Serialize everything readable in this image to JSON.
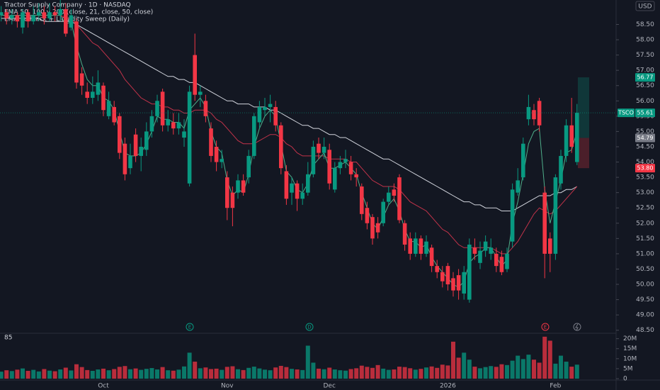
{
  "chart_data": {
    "type": "candlestick",
    "title": "Tractor Supply Company · 1D · NASDAQ",
    "indicators": [
      "EMA 50, 100 y 200 (close, 21, close, 50, close)",
      "EMA Pullback + Liquidity Sweep (Daily)"
    ],
    "currency": "USD",
    "categories": [
      null,
      null,
      null,
      null,
      null,
      null,
      null,
      null,
      null,
      null,
      null,
      null,
      null,
      null,
      null,
      null,
      null,
      null,
      null,
      "Oct",
      null,
      null,
      null,
      null,
      null,
      null,
      null,
      null,
      null,
      null,
      null,
      null,
      null,
      null,
      null,
      null,
      null,
      null,
      null,
      null,
      null,
      null,
      "Nov",
      null,
      null,
      null,
      null,
      null,
      null,
      null,
      null,
      null,
      null,
      null,
      null,
      null,
      null,
      null,
      null,
      null,
      null,
      "Dec",
      null,
      null,
      null,
      null,
      null,
      null,
      null,
      null,
      null,
      null,
      null,
      null,
      null,
      null,
      null,
      null,
      null,
      null,
      null,
      null,
      null,
      "2026",
      null,
      null,
      null,
      null,
      null,
      null,
      null,
      null,
      null,
      null,
      null,
      null,
      null,
      null,
      null,
      null,
      null,
      null,
      null,
      "Feb",
      null,
      null,
      null,
      null
    ],
    "open": [
      58.8,
      58.9,
      58.7,
      58.8,
      58.4,
      58.9,
      58.6,
      58.8,
      58.9,
      58.7,
      58.9,
      58.8,
      59.0,
      58.4,
      58.6,
      56.9,
      56.3,
      56.1,
      56.2,
      56.5,
      55.5,
      55.8,
      55.5,
      54.6,
      53.8,
      54.9,
      54.2,
      54.4,
      55.0,
      55.5,
      56.3,
      55.2,
      55.3,
      55.1,
      54.8,
      53.3,
      57.5,
      56.2,
      56.0,
      55.1,
      54.5,
      54.0,
      53.5,
      53.0,
      53.0,
      53.4,
      53.5,
      54.2,
      55.3,
      55.7,
      55.8,
      55.8,
      55.2,
      53.7,
      53.0,
      53.3,
      52.8,
      53.0,
      53.6,
      54.6,
      54.3,
      54.4,
      53.1,
      53.8,
      54.0,
      54.0,
      53.6,
      53.2,
      52.5,
      52.2,
      52.0,
      52.0,
      52.7,
      53.1,
      53.5,
      52.0,
      51.5,
      51.0,
      51.5,
      51.0,
      51.2,
      50.6,
      50.4,
      50.6,
      50.2,
      50.3,
      49.7,
      49.5,
      51.2,
      50.7,
      51.1,
      51.0,
      51.0,
      50.9,
      50.5,
      51.4,
      53.0,
      53.5,
      55.4,
      55.7,
      56.0,
      53.0,
      51.5,
      51.0,
      53.3,
      54.2,
      55.2,
      54.0
    ],
    "high": [
      59.1,
      59.0,
      59.0,
      58.9,
      59.0,
      59.0,
      59.1,
      59.2,
      59.1,
      59.2,
      59.1,
      59.3,
      59.2,
      59.0,
      58.7,
      57.1,
      56.6,
      56.8,
      57.0,
      56.6,
      56.3,
      56.0,
      55.6,
      54.8,
      54.6,
      55.1,
      54.8,
      55.3,
      55.7,
      56.2,
      56.4,
      55.7,
      55.6,
      55.6,
      55.4,
      56.5,
      58.2,
      56.5,
      56.2,
      55.3,
      54.7,
      54.4,
      53.7,
      53.2,
      53.6,
      53.6,
      54.4,
      55.6,
      56.0,
      56.1,
      56.2,
      56.0,
      55.3,
      53.9,
      53.5,
      53.4,
      53.3,
      54.0,
      54.7,
      54.8,
      54.8,
      54.6,
      54.0,
      54.2,
      54.4,
      54.2,
      53.8,
      53.3,
      52.7,
      52.3,
      52.2,
      52.8,
      53.2,
      53.3,
      53.6,
      52.1,
      51.7,
      51.7,
      51.6,
      51.6,
      51.3,
      50.8,
      50.6,
      50.7,
      50.4,
      50.5,
      50.6,
      51.5,
      51.5,
      51.4,
      51.6,
      51.5,
      51.2,
      51.1,
      51.2,
      53.3,
      53.8,
      54.8,
      56.2,
      55.9,
      56.1,
      53.2,
      51.7,
      53.6,
      54.4,
      55.4,
      56.1,
      55.9
    ],
    "low": [
      58.6,
      58.5,
      58.5,
      58.4,
      58.2,
      58.4,
      58.5,
      58.6,
      58.5,
      58.6,
      58.6,
      58.6,
      58.1,
      58.3,
      56.4,
      56.2,
      55.9,
      55.9,
      56.0,
      55.5,
      55.4,
      55.2,
      54.1,
      53.4,
      53.6,
      54.0,
      53.7,
      54.2,
      54.8,
      55.3,
      55.0,
      55.0,
      54.9,
      54.9,
      54.5,
      53.2,
      56.0,
      55.8,
      55.3,
      54.0,
      53.7,
      53.8,
      52.1,
      51.9,
      52.8,
      52.9,
      53.3,
      54.1,
      55.1,
      55.5,
      55.3,
      55.0,
      53.6,
      52.6,
      52.6,
      52.4,
      52.6,
      52.9,
      53.5,
      54.1,
      54.1,
      53.1,
      53.0,
      53.6,
      53.8,
      53.4,
      53.2,
      52.1,
      51.8,
      51.3,
      51.5,
      51.9,
      52.6,
      52.7,
      52.0,
      51.1,
      50.8,
      50.9,
      50.8,
      50.9,
      50.4,
      50.2,
      49.9,
      49.8,
      49.6,
      49.5,
      49.5,
      49.4,
      50.8,
      50.5,
      50.9,
      50.8,
      50.4,
      50.3,
      50.4,
      51.2,
      52.9,
      53.4,
      55.2,
      55.2,
      55.0,
      50.2,
      50.4,
      50.8,
      53.1,
      54.0,
      54.3,
      53.9
    ],
    "close": [
      58.9,
      58.7,
      58.8,
      58.6,
      58.9,
      58.6,
      58.8,
      58.9,
      58.7,
      58.9,
      58.8,
      59.0,
      58.2,
      58.8,
      56.6,
      56.5,
      56.1,
      56.3,
      56.6,
      55.7,
      56.0,
      55.3,
      54.3,
      53.6,
      54.2,
      54.2,
      54.5,
      55.0,
      55.5,
      56.0,
      55.2,
      55.4,
      55.1,
      55.3,
      55.0,
      56.3,
      56.2,
      56.3,
      55.5,
      54.2,
      54.0,
      54.1,
      52.5,
      52.5,
      53.4,
      53.0,
      54.2,
      55.5,
      55.8,
      55.8,
      55.9,
      55.2,
      53.8,
      52.8,
      53.3,
      52.8,
      53.0,
      53.6,
      54.5,
      54.3,
      54.5,
      53.3,
      53.8,
      54.0,
      54.1,
      53.6,
      53.5,
      52.3,
      52.0,
      51.5,
      51.7,
      52.7,
      53.0,
      52.9,
      52.1,
      51.3,
      51.0,
      51.5,
      51.0,
      51.4,
      50.6,
      50.4,
      50.1,
      50.0,
      49.8,
      49.8,
      50.4,
      51.3,
      51.0,
      51.1,
      51.4,
      51.2,
      50.6,
      50.4,
      51.0,
      53.1,
      53.4,
      54.6,
      55.8,
      55.4,
      55.2,
      51.0,
      51.0,
      53.5,
      54.2,
      55.2,
      54.5,
      55.61
    ],
    "up_color": "#089981",
    "down_color": "#f23645",
    "ylim": [
      48.4,
      59.3
    ],
    "yticks": [
      {
        "value": 48.5,
        "label": "48.50"
      },
      {
        "value": 49,
        "label": "49.00"
      },
      {
        "value": 49.5,
        "label": "49.50"
      },
      {
        "value": 50,
        "label": "50.00"
      },
      {
        "value": 50.5,
        "label": "50.50"
      },
      {
        "value": 51,
        "label": "51.00"
      },
      {
        "value": 51.5,
        "label": "51.50"
      },
      {
        "value": 52,
        "label": "52.00"
      },
      {
        "value": 52.5,
        "label": "52.50"
      },
      {
        "value": 53,
        "label": "53.00"
      },
      {
        "value": 53.5,
        "label": "53.50"
      },
      {
        "value": 54,
        "label": "54.00"
      },
      {
        "value": 54.5,
        "label": "54.50"
      },
      {
        "value": 55,
        "label": "55.00"
      },
      {
        "value": 55.5,
        "label": "55.50"
      },
      {
        "value": 56,
        "label": "56.00"
      },
      {
        "value": 56.5,
        "label": "56.50"
      },
      {
        "value": 57,
        "label": "57.00"
      },
      {
        "value": 57.5,
        "label": "57.50"
      },
      {
        "value": 58,
        "label": "58.00"
      },
      {
        "value": 58.5,
        "label": "58.50"
      }
    ],
    "lines": [
      {
        "color": "#d1d4dc",
        "values": [
          58.7,
          58.7,
          58.7,
          58.7,
          58.7,
          58.7,
          58.7,
          58.7,
          58.6,
          58.6,
          58.6,
          58.6,
          58.6,
          58.6,
          58.5,
          58.4,
          58.3,
          58.2,
          58.1,
          58.0,
          57.9,
          57.8,
          57.7,
          57.6,
          57.5,
          57.4,
          57.3,
          57.2,
          57.1,
          57.0,
          56.9,
          56.8,
          56.8,
          56.7,
          56.7,
          56.6,
          56.6,
          56.5,
          56.4,
          56.3,
          56.2,
          56.1,
          56.0,
          56.0,
          55.9,
          55.9,
          55.9,
          55.8,
          55.8,
          55.8,
          55.7,
          55.7,
          55.6,
          55.5,
          55.4,
          55.3,
          55.2,
          55.2,
          55.1,
          55.1,
          55.0,
          54.9,
          54.9,
          54.8,
          54.8,
          54.7,
          54.6,
          54.5,
          54.4,
          54.3,
          54.2,
          54.1,
          54.1,
          54.0,
          53.9,
          53.8,
          53.7,
          53.6,
          53.5,
          53.4,
          53.3,
          53.2,
          53.1,
          53.0,
          52.9,
          52.8,
          52.7,
          52.7,
          52.6,
          52.6,
          52.5,
          52.5,
          52.5,
          52.4,
          52.4,
          52.4,
          52.5,
          52.6,
          52.7,
          52.8,
          52.9,
          52.9,
          52.9,
          53.0,
          53.0,
          53.1,
          53.1,
          53.2
        ]
      },
      {
        "color": "#c2334a",
        "values": [
          58.8,
          58.8,
          58.8,
          58.8,
          58.8,
          58.8,
          58.8,
          58.8,
          58.8,
          58.8,
          58.8,
          58.8,
          58.7,
          58.7,
          58.5,
          58.3,
          58.1,
          57.9,
          57.8,
          57.6,
          57.4,
          57.2,
          57.0,
          56.7,
          56.5,
          56.3,
          56.1,
          56.0,
          55.9,
          55.9,
          55.8,
          55.8,
          55.7,
          55.7,
          55.6,
          55.6,
          55.7,
          55.7,
          55.7,
          55.6,
          55.4,
          55.3,
          55.1,
          54.9,
          54.7,
          54.6,
          54.6,
          54.6,
          54.7,
          54.8,
          54.9,
          54.9,
          54.8,
          54.6,
          54.5,
          54.3,
          54.2,
          54.2,
          54.2,
          54.2,
          54.2,
          54.1,
          54.1,
          54.1,
          54.1,
          54.0,
          54.0,
          53.8,
          53.6,
          53.4,
          53.3,
          53.2,
          53.2,
          53.2,
          53.1,
          52.9,
          52.7,
          52.6,
          52.5,
          52.4,
          52.2,
          52.0,
          51.8,
          51.7,
          51.5,
          51.3,
          51.2,
          51.2,
          51.2,
          51.2,
          51.2,
          51.2,
          51.1,
          51.0,
          51.0,
          51.2,
          51.4,
          51.7,
          52.0,
          52.3,
          52.5,
          52.4,
          52.3,
          52.4,
          52.6,
          52.8,
          53.0,
          53.2
        ]
      },
      {
        "color": "#4fae8a",
        "values": [
          58.8,
          58.8,
          58.8,
          58.8,
          58.8,
          58.8,
          58.8,
          58.8,
          58.8,
          58.8,
          58.8,
          58.8,
          58.5,
          58.6,
          57.8,
          57.2,
          56.7,
          56.5,
          56.5,
          56.1,
          56.0,
          55.7,
          55.0,
          54.3,
          54.2,
          54.2,
          54.3,
          54.6,
          55.0,
          55.5,
          55.4,
          55.4,
          55.3,
          55.3,
          55.1,
          55.7,
          55.9,
          56.1,
          55.8,
          55.0,
          54.5,
          54.3,
          53.4,
          52.9,
          53.1,
          53.0,
          53.6,
          54.5,
          55.1,
          55.5,
          55.7,
          55.5,
          54.6,
          53.7,
          53.5,
          53.1,
          53.0,
          53.3,
          53.9,
          54.1,
          54.3,
          53.8,
          53.8,
          53.9,
          54.0,
          53.8,
          53.6,
          53.0,
          52.5,
          52.0,
          51.8,
          52.2,
          52.6,
          52.8,
          52.4,
          51.8,
          51.4,
          51.4,
          51.2,
          51.3,
          50.9,
          50.6,
          50.4,
          50.2,
          50.0,
          49.9,
          50.1,
          50.7,
          50.9,
          51.0,
          51.2,
          51.2,
          50.9,
          50.6,
          50.8,
          52.0,
          52.7,
          53.6,
          54.6,
          55.0,
          55.1,
          53.1,
          52.0,
          52.7,
          53.4,
          54.3,
          54.4,
          55.0
        ]
      }
    ],
    "volume": {
      "label": "85",
      "values": [
        3500000,
        4200000,
        3800000,
        4500000,
        5100000,
        3900000,
        4400000,
        3600000,
        4800000,
        4000000,
        3700000,
        4600000,
        5500000,
        4100000,
        7200000,
        5800000,
        4300000,
        3900000,
        4600000,
        5000000,
        4200000,
        4800000,
        5900000,
        6300000,
        4700000,
        5100000,
        4400000,
        4900000,
        5300000,
        4600000,
        5800000,
        4200000,
        4000000,
        4500000,
        6100000,
        13000000,
        8500000,
        5200000,
        5600000,
        4800000,
        5000000,
        4400000,
        5900000,
        6200000,
        4700000,
        4300000,
        5400000,
        6000000,
        5100000,
        4500000,
        4200000,
        5600000,
        6400000,
        5800000,
        4900000,
        4600000,
        4300000,
        16500000,
        8000000,
        5000000,
        4700000,
        5500000,
        4600000,
        4200000,
        4000000,
        4800000,
        5200000,
        6500000,
        5900000,
        5400000,
        6800000,
        5000000,
        4400000,
        4600000,
        6000000,
        5800000,
        5200000,
        4500000,
        4900000,
        5600000,
        6100000,
        5400000,
        7000000,
        6600000,
        18500000,
        10500000,
        13000000,
        9500000,
        6000000,
        5200000,
        5800000,
        6300000,
        5900000,
        7200000,
        6800000,
        9000000,
        11500000,
        9800000,
        12000000,
        9500000,
        8000000,
        21000000,
        19000000,
        7500000,
        11500000,
        8500000,
        6000000,
        7000000
      ],
      "ylim": [
        0,
        22000000
      ],
      "yticks": [
        0,
        {
          "value": 5000000,
          "label": "5M"
        },
        {
          "value": 10000000,
          "label": "10M"
        },
        {
          "value": 15000000,
          "label": "15M"
        },
        {
          "value": 20000000,
          "label": "20M"
        }
      ]
    },
    "price_tags": [
      {
        "label": "TSCO",
        "value": 55.61,
        "color": "#089981"
      },
      {
        "value": 56.77,
        "color": "#089981"
      },
      {
        "value": 54.79,
        "color": "#787b86"
      },
      {
        "value": 53.8,
        "value_label": "53.80",
        "color": "#f23645"
      }
    ],
    "events": [
      "E",
      "D",
      "E"
    ]
  }
}
